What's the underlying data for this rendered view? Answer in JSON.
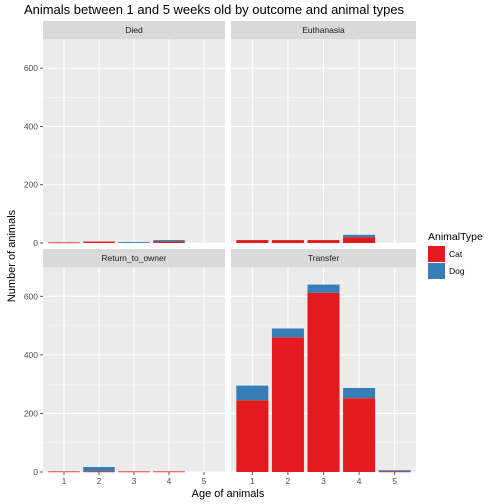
{
  "chart_data": {
    "type": "bar",
    "stacked": true,
    "faceted": true,
    "title": "Animals between 1 and 5 weeks old by outcome and animal types",
    "xlabel": "Age of animals",
    "ylabel": "Number of animals",
    "categories": [
      "1",
      "2",
      "3",
      "4",
      "5"
    ],
    "ylim": [
      0,
      700
    ],
    "yticks": [
      "0",
      "200",
      "400",
      "600"
    ],
    "grid": true,
    "legend": {
      "title": "AnimalType",
      "position": "right",
      "entries": [
        {
          "name": "Cat",
          "color": "#e41a1c"
        },
        {
          "name": "Dog",
          "color": "#377eb8"
        }
      ]
    },
    "panels": [
      {
        "name": "Died",
        "series": [
          {
            "name": "Cat",
            "values": [
              2,
              5,
              0,
              5,
              0
            ]
          },
          {
            "name": "Dog",
            "values": [
              0,
              0,
              3,
              5,
              0
            ]
          }
        ]
      },
      {
        "name": "Euthanasia",
        "series": [
          {
            "name": "Cat",
            "values": [
              10,
              10,
              10,
              20,
              0
            ]
          },
          {
            "name": "Dog",
            "values": [
              0,
              0,
              0,
              8,
              0
            ]
          }
        ]
      },
      {
        "name": "Return_to_owner",
        "series": [
          {
            "name": "Cat",
            "values": [
              2,
              2,
              2,
              2,
              0
            ]
          },
          {
            "name": "Dog",
            "values": [
              0,
              15,
              0,
              0,
              0
            ]
          }
        ]
      },
      {
        "name": "Transfer",
        "series": [
          {
            "name": "Cat",
            "values": [
              245,
              460,
              612,
              252,
              2
            ]
          },
          {
            "name": "Dog",
            "values": [
              50,
              30,
              28,
              35,
              4
            ]
          }
        ]
      }
    ]
  }
}
